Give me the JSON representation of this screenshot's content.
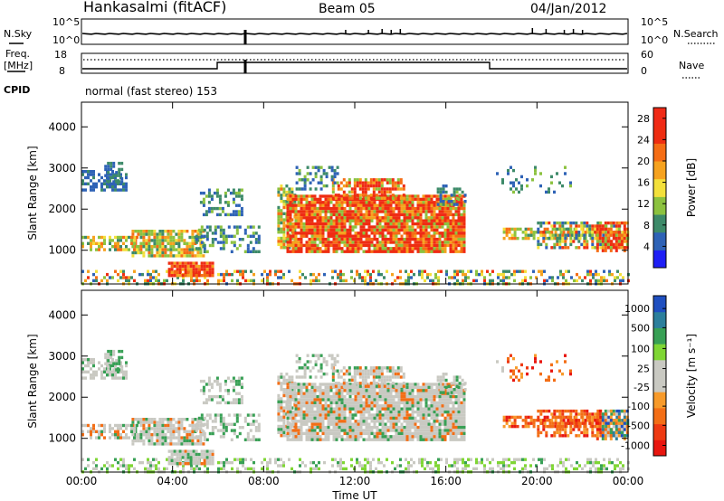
{
  "header": {
    "station": "Hankasalmi (fitACF)",
    "beam": "Beam 05",
    "date": "04/Jan/2012"
  },
  "strip": {
    "nsky_label": "N.Sky",
    "nsearch_label": "N.Search",
    "noise_ticks_left": [
      "10^5",
      "10^0"
    ],
    "noise_ticks_right": [
      "10^5",
      "10^0"
    ],
    "freq_label_line1": "Freq.",
    "freq_label_line2": "[MHz]",
    "freq_ticks": [
      "18",
      "8"
    ],
    "nave_label": "Nave",
    "nave_ticks": [
      "60",
      "0"
    ],
    "cpid_label": "CPID",
    "cpid_text": "normal (fast stereo) 153"
  },
  "colors": {
    "power": [
      "#1f1ff5",
      "#2e62b6",
      "#3d8a69",
      "#8cc23f",
      "#f3e03b",
      "#f6a21e",
      "#f56d15",
      "#ee2d11",
      "#f02a16"
    ],
    "velocity": [
      "#e8160f",
      "#ee3a12",
      "#f36e16",
      "#f79a2a",
      "#c9c9c2",
      "#c9c9c2",
      "#7fd634",
      "#38a055",
      "#2c7f9c",
      "#1f4fc0"
    ]
  },
  "chart_data": [
    {
      "type": "heatmap",
      "title": "",
      "xlabel": "Time UT",
      "ylabel": "Slant Range [km]",
      "xlim": [
        "00:00",
        "24:00"
      ],
      "ylim": [
        180,
        4600
      ],
      "x_ticks": [
        "00:00",
        "04:00",
        "08:00",
        "12:00",
        "16:00",
        "20:00",
        "00:00"
      ],
      "y_ticks": [
        "1000",
        "2000",
        "3000",
        "4000"
      ],
      "colorbar_label": "Power [dB]",
      "colorbar_ticks": [
        "4",
        "8",
        "12",
        "16",
        "20",
        "24",
        "28"
      ],
      "colorbar_range": [
        0,
        30
      ]
    },
    {
      "type": "heatmap",
      "title": "",
      "xlabel": "Time UT",
      "ylabel": "Slant Range [km]",
      "xlim": [
        "00:00",
        "24:00"
      ],
      "ylim": [
        180,
        4600
      ],
      "x_ticks": [
        "00:00",
        "04:00",
        "08:00",
        "12:00",
        "16:00",
        "20:00",
        "00:00"
      ],
      "y_ticks": [
        "1000",
        "2000",
        "3000",
        "4000"
      ],
      "colorbar_label": "Velocity [m s⁻¹]",
      "colorbar_ticks": [
        "1000",
        "500",
        "100",
        "25",
        "-25",
        "-100",
        "-500",
        "-1000"
      ]
    }
  ]
}
